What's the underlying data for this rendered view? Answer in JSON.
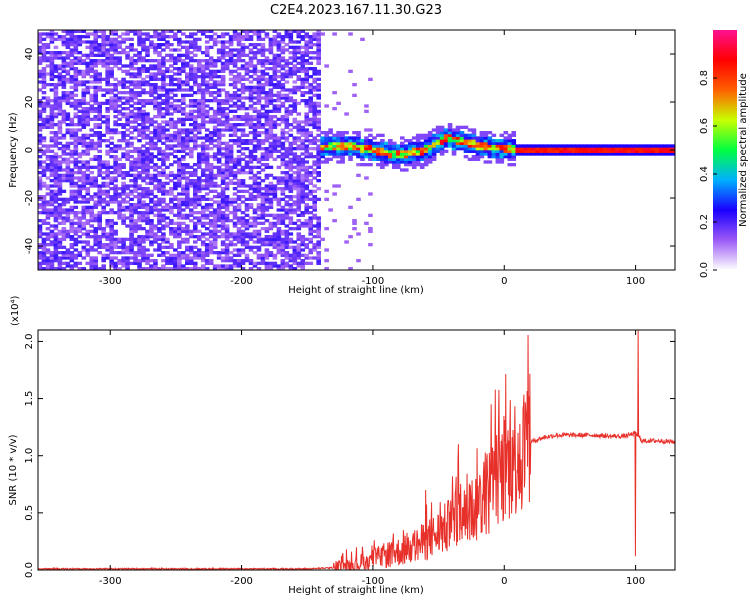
{
  "chart_data": [
    {
      "type": "heatmap",
      "title": "C2E4.2023.167.11.30.G23",
      "xlabel": "Height of straight line (km)",
      "ylabel": "Frequency (Hz)",
      "xlim": [
        -355,
        130
      ],
      "ylim": [
        -50,
        50
      ],
      "xticks": [
        -300,
        -200,
        -100,
        0,
        100
      ],
      "yticks": [
        -40,
        -20,
        0,
        20,
        40
      ],
      "noise_region_x": [
        -355,
        -140
      ],
      "signal_centerline": [
        [
          -180,
          3
        ],
        [
          -160,
          2
        ],
        [
          -140,
          1
        ],
        [
          -120,
          2
        ],
        [
          -100,
          0
        ],
        [
          -80,
          -2
        ],
        [
          -60,
          0
        ],
        [
          -45,
          5
        ],
        [
          -35,
          4
        ],
        [
          -20,
          2
        ],
        [
          -10,
          1
        ],
        [
          0,
          1
        ],
        [
          10,
          0
        ],
        [
          130,
          0
        ]
      ],
      "colorbar": {
        "label": "Normalized spectral amplitude",
        "range": [
          0,
          1
        ],
        "ticks": [
          "0.0",
          "0.2",
          "0.4",
          "0.6",
          "0.8"
        ],
        "colors": [
          "#ffffff",
          "#9b59f6",
          "#1a00ff",
          "#00b0ff",
          "#00ff40",
          "#c8ff00",
          "#ff6000",
          "#ff0000",
          "#ff1090"
        ]
      }
    },
    {
      "type": "line",
      "xlabel": "Height of straight line (km)",
      "ylabel": "SNR (10 * v/v)",
      "y_multiplier": "(x10⁴)",
      "xlim": [
        -355,
        130
      ],
      "ylim": [
        0,
        2.1
      ],
      "xticks": [
        -300,
        -200,
        -100,
        0,
        100
      ],
      "yticks": [
        "0.0",
        "0.5",
        "1.0",
        "1.5",
        "2.0"
      ],
      "color": "#e8302a",
      "x": [
        -355,
        -300,
        -250,
        -200,
        -150,
        -130,
        -120,
        -110,
        -100,
        -90,
        -80,
        -70,
        -60,
        -50,
        -40,
        -30,
        -20,
        -10,
        0,
        10,
        20,
        30,
        40,
        50,
        60,
        70,
        80,
        90,
        95,
        100,
        102,
        105,
        110,
        120,
        130
      ],
      "y": [
        0.01,
        0.01,
        0.01,
        0.01,
        0.01,
        0.02,
        0.03,
        0.06,
        0.09,
        0.13,
        0.16,
        0.2,
        0.25,
        0.32,
        0.4,
        0.47,
        0.58,
        0.72,
        0.88,
        1.02,
        1.12,
        1.16,
        1.18,
        1.18,
        1.18,
        1.18,
        1.17,
        1.17,
        1.18,
        1.2,
        1.17,
        1.13,
        1.13,
        1.13,
        1.12
      ],
      "spikes": [
        [
          100,
          0.12
        ],
        [
          102,
          2.1
        ],
        [
          -10,
          1.45
        ],
        [
          -35,
          1.1
        ],
        [
          -60,
          0.7
        ],
        [
          -120,
          0.18
        ]
      ]
    }
  ]
}
